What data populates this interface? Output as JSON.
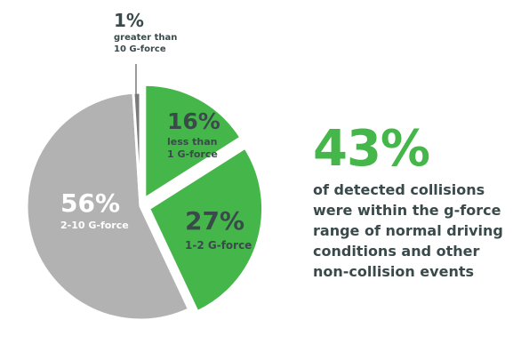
{
  "chart_data": {
    "type": "pie",
    "title": "",
    "slices": [
      {
        "value": 16,
        "pct_label": "16%",
        "desc": [
          "less than",
          "1 G-force"
        ],
        "color": "#45b649",
        "exploded": true
      },
      {
        "value": 27,
        "pct_label": "27%",
        "desc": [
          "1-2 G-force"
        ],
        "color": "#45b649",
        "exploded": true
      },
      {
        "value": 56,
        "pct_label": "56%",
        "desc": [
          "2-10 G-force"
        ],
        "color": "#b2b2b2",
        "exploded": false
      },
      {
        "value": 1,
        "pct_label": "1%",
        "desc": [
          "greater than",
          "10 G-force"
        ],
        "color": "#7a7a7a",
        "exploded": false
      }
    ],
    "colors": {
      "green": "#45b649",
      "gray": "#b2b2b2",
      "dark_gray": "#7a7a7a",
      "text_dark": "#3a4a4b",
      "text_light": "#ffffff"
    }
  },
  "callout": {
    "big_value": "43%",
    "lines": [
      "of detected collisions",
      "were within the g-force",
      "range of normal driving",
      "conditions and other",
      "non-collision events"
    ]
  }
}
